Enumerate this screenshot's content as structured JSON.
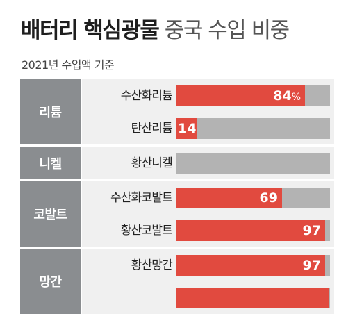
{
  "chart_data": {
    "type": "bar",
    "orientation": "horizontal",
    "title_bold": "배터리 핵심광물",
    "title_light": "중국 수입 비중",
    "subtitle": "2021년 수입액 기준",
    "unit": "%",
    "xlim": [
      0,
      100
    ],
    "groups": [
      {
        "name": "리튬",
        "items": [
          {
            "label": "수산화리튬",
            "value": 84,
            "value_text": "84",
            "show_unit": true
          },
          {
            "label": "탄산리튬",
            "value": 14,
            "value_text": "14",
            "show_unit": false
          }
        ]
      },
      {
        "name": "니켈",
        "items": [
          {
            "label": "황산니켈",
            "value": 0,
            "value_text": "",
            "show_unit": false
          }
        ]
      },
      {
        "name": "코발트",
        "items": [
          {
            "label": "수산화코발트",
            "value": 69,
            "value_text": "69",
            "show_unit": false
          },
          {
            "label": "황산코발트",
            "value": 97,
            "value_text": "97",
            "show_unit": false
          }
        ]
      },
      {
        "name": "망간",
        "items": [
          {
            "label": "황산망간",
            "value": 97,
            "value_text": "97",
            "show_unit": false
          },
          {
            "label": "",
            "value": 99,
            "value_text": "",
            "show_unit": false
          }
        ]
      }
    ]
  },
  "colors": {
    "bar_fill": "#e14a3f",
    "bar_track": "#b3b3b3",
    "group_box": "#8a8d90",
    "row_background": "#f0f0f0"
  }
}
